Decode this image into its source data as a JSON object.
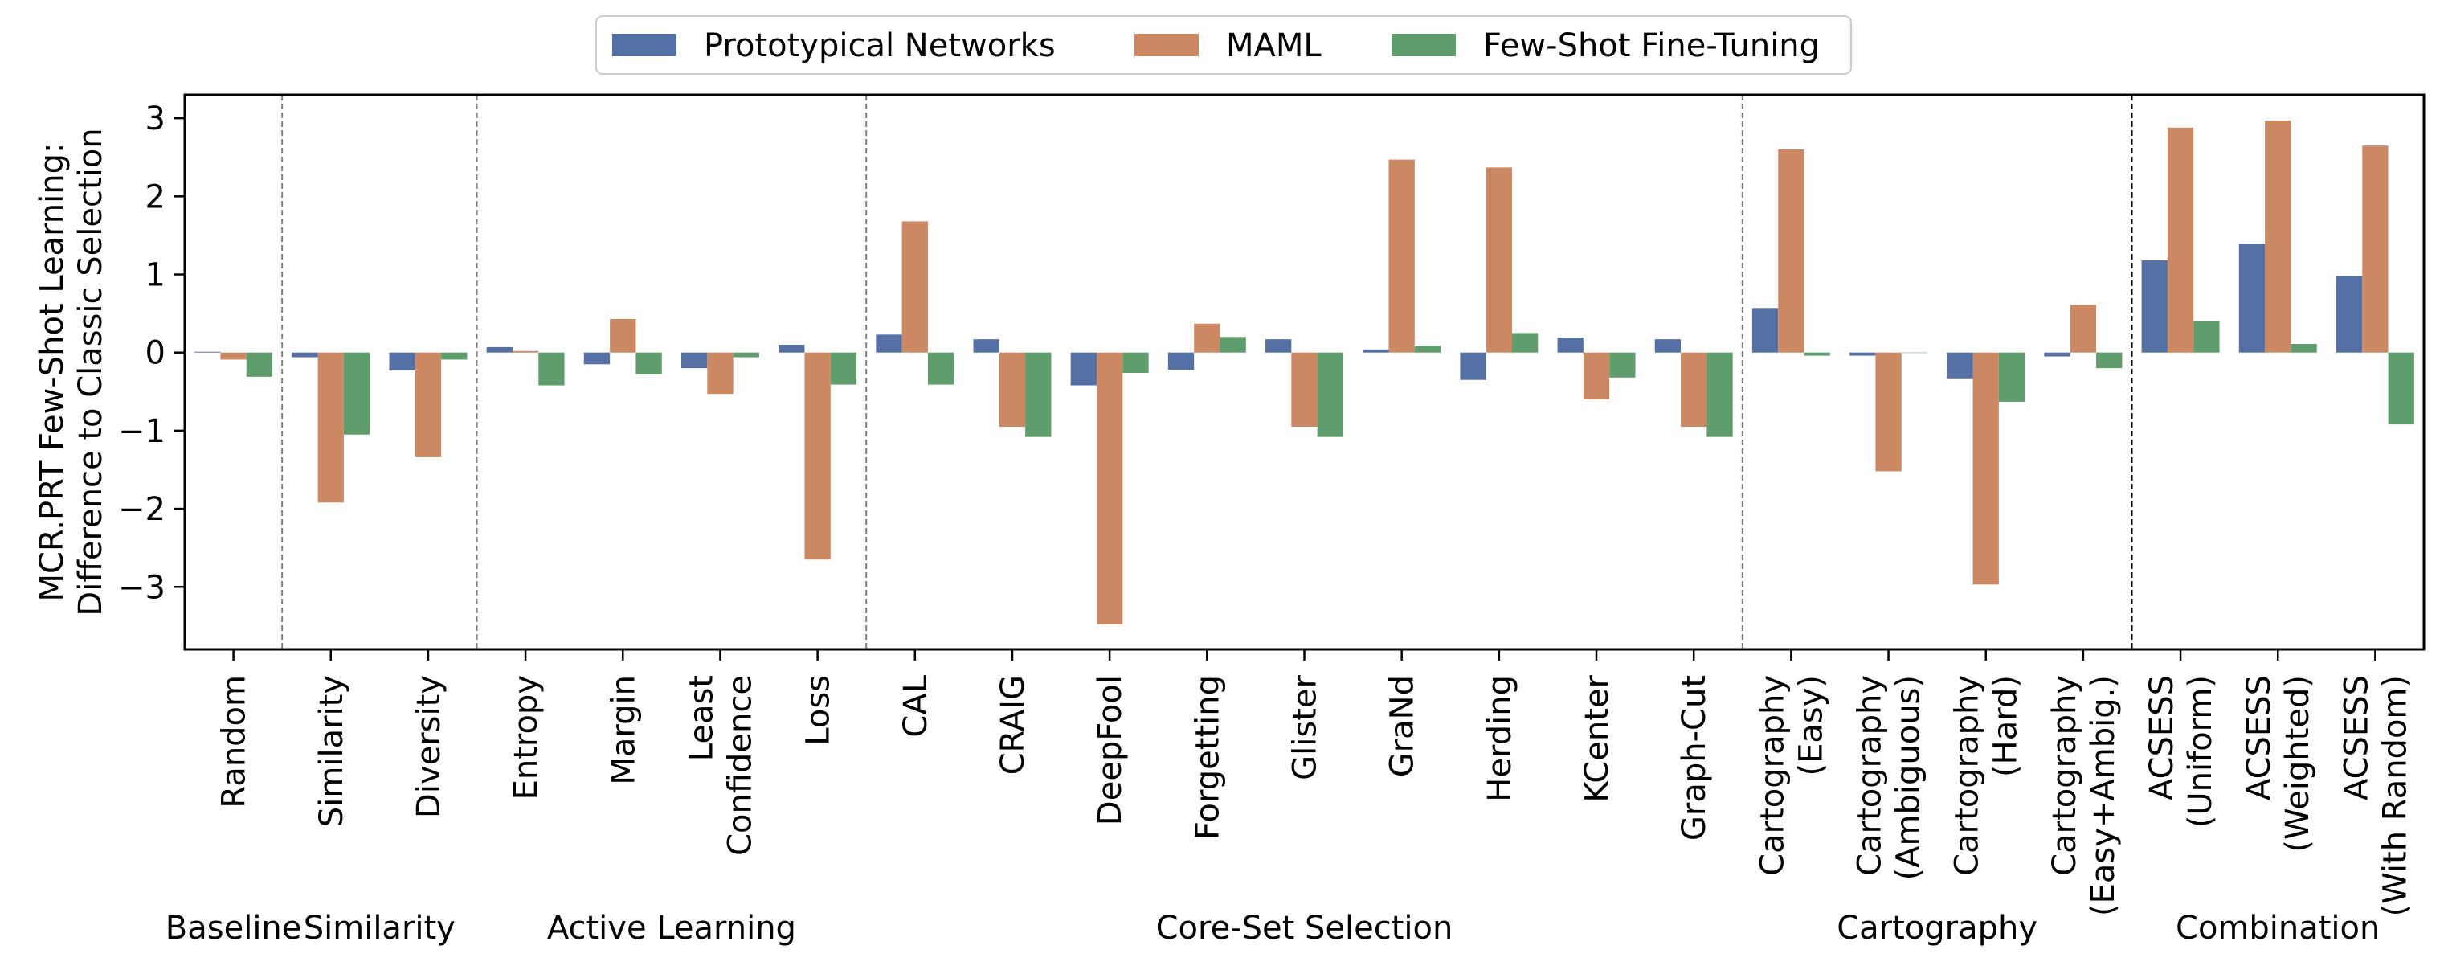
{
  "chart_data": {
    "type": "bar",
    "title": "",
    "xlabel": "",
    "ylabel_lines": [
      "MCR.PRT Few-Shot Learning:",
      "Difference to Classic Selection"
    ],
    "ylim": [
      -3.8,
      3.3
    ],
    "yticks": [
      -3,
      -2,
      -1,
      0,
      1,
      2,
      3
    ],
    "legend_position": "top-center",
    "categories": [
      [
        "Random"
      ],
      [
        "Similarity"
      ],
      [
        "Diversity"
      ],
      [
        "Entropy"
      ],
      [
        "Margin"
      ],
      [
        "Least",
        "Confidence"
      ],
      [
        "Loss"
      ],
      [
        "CAL"
      ],
      [
        "CRAIG"
      ],
      [
        "DeepFool"
      ],
      [
        "Forgetting"
      ],
      [
        "Glister"
      ],
      [
        "GraNd"
      ],
      [
        "Herding"
      ],
      [
        "KCenter"
      ],
      [
        "Graph-Cut"
      ],
      [
        "Cartography",
        "(Easy)"
      ],
      [
        "Cartography",
        "(Ambiguous)"
      ],
      [
        "Cartography",
        "(Hard)"
      ],
      [
        "Cartography",
        "(Easy+Ambig.)"
      ],
      [
        "ACSESS",
        "(Uniform)"
      ],
      [
        "ACSESS",
        "(Weighted)"
      ],
      [
        "ACSESS",
        "(With Random)"
      ]
    ],
    "series": [
      {
        "name": "Prototypical Networks",
        "color": "#5470a4",
        "values": [
          0.01,
          -0.06,
          -0.23,
          0.07,
          -0.15,
          -0.2,
          0.1,
          0.23,
          0.17,
          -0.42,
          -0.22,
          0.17,
          0.04,
          -0.35,
          0.19,
          0.17,
          0.57,
          -0.04,
          -0.33,
          -0.05,
          1.18,
          1.39,
          0.98
        ]
      },
      {
        "name": "MAML",
        "color": "#cc8862",
        "values": [
          -0.09,
          -1.92,
          -1.34,
          0.02,
          0.43,
          -0.53,
          -2.65,
          1.68,
          -0.95,
          -3.48,
          0.37,
          -0.95,
          2.47,
          2.37,
          -0.6,
          -0.95,
          2.6,
          -1.52,
          -2.97,
          0.61,
          2.88,
          2.97,
          2.65
        ]
      },
      {
        "name": "Few-Shot Fine-Tuning",
        "color": "#5f9d6c",
        "values": [
          -0.31,
          -1.05,
          -0.09,
          -0.42,
          -0.28,
          -0.06,
          -0.41,
          -0.41,
          -1.08,
          -0.26,
          0.2,
          -1.08,
          0.09,
          0.25,
          -0.32,
          -1.08,
          -0.04,
          0.0,
          -0.63,
          -0.2,
          0.4,
          0.11,
          -0.92
        ]
      }
    ],
    "groups": [
      {
        "label": "Baseline",
        "first": 0,
        "last": 0,
        "separator_after": "gray"
      },
      {
        "label": "Similarity",
        "first": 1,
        "last": 2,
        "separator_after": "gray"
      },
      {
        "label": "Active Learning",
        "first": 3,
        "last": 6,
        "separator_after": "gray"
      },
      {
        "label": "Core-Set Selection",
        "first": 7,
        "last": 15,
        "separator_after": "gray"
      },
      {
        "label": "Cartography",
        "first": 16,
        "last": 19,
        "separator_after": "black"
      },
      {
        "label": "Combination",
        "first": 20,
        "last": 22,
        "separator_after": null
      }
    ],
    "grid": false
  }
}
